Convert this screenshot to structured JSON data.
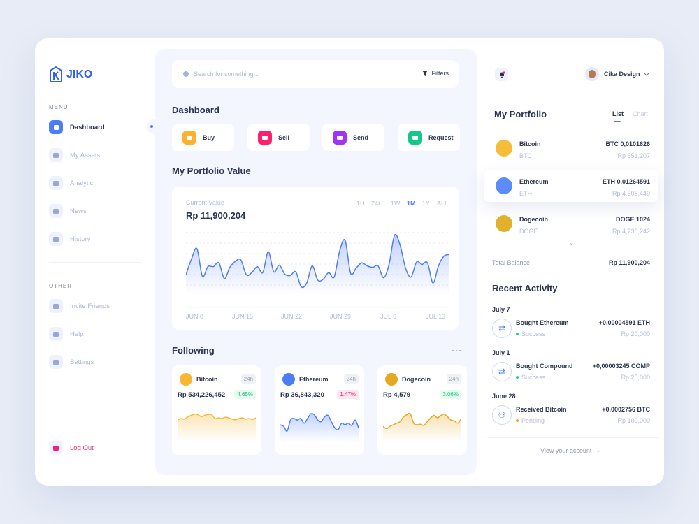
{
  "brand": {
    "name": "JIKO",
    "accent": "#2f63f0"
  },
  "sidebar": {
    "menu_label": "MENU",
    "menu": [
      {
        "label": "Dashboard",
        "icon": "grid-icon",
        "active": true
      },
      {
        "label": "My Assets",
        "icon": "wallet-icon"
      },
      {
        "label": "Analytic",
        "icon": "chart-icon"
      },
      {
        "label": "News",
        "icon": "document-icon"
      },
      {
        "label": "History",
        "icon": "clock-icon"
      }
    ],
    "other_label": "OTHER",
    "other": [
      {
        "label": "Invite Friends",
        "icon": "folder-icon"
      },
      {
        "label": "Help",
        "icon": "help-icon"
      },
      {
        "label": "Settings",
        "icon": "gear-icon"
      }
    ],
    "logout": "Log Out"
  },
  "search": {
    "placeholder": "Search for something...",
    "filters": "Filters"
  },
  "dashboard": {
    "title": "Dashboard",
    "actions": [
      {
        "label": "Buy",
        "color": "#ffb02e",
        "icon": "cart-icon"
      },
      {
        "label": "Sell",
        "color": "#ff1f6d",
        "icon": "tag-icon"
      },
      {
        "label": "Send",
        "color": "#a033f5",
        "icon": "send-icon"
      },
      {
        "label": "Request",
        "color": "#12c98a",
        "icon": "request-icon"
      }
    ]
  },
  "portfolio_value": {
    "title": "My Portfolio Value",
    "current_label": "Current Value",
    "current": "Rp 11,900,204",
    "timeframes": [
      "1H",
      "24H",
      "1W",
      "1M",
      "1Y",
      "ALL"
    ],
    "selected": "1M"
  },
  "chart_data": {
    "type": "area",
    "xticks": [
      "JUN 8",
      "JUN 15",
      "JUN 22",
      "JUN 29",
      "JUL 6",
      "JUL 13"
    ],
    "values": [
      38,
      59,
      73,
      36,
      49,
      49,
      54,
      33,
      48,
      56,
      58,
      38,
      41,
      49,
      41,
      69,
      42,
      51,
      39,
      37,
      42,
      22,
      27,
      50,
      31,
      32,
      41,
      35,
      70,
      84,
      40,
      47,
      54,
      50,
      48,
      50,
      34,
      52,
      91,
      78,
      47,
      35,
      55,
      52,
      54,
      27,
      50,
      63,
      65
    ],
    "ylim": [
      0,
      100
    ],
    "grid": true,
    "color": "#4d7cf6"
  },
  "following": {
    "title": "Following",
    "items": [
      {
        "name": "Bitcoin",
        "tag": "24h",
        "price": "Rp 534,226,452",
        "change": "4.65%",
        "up": true,
        "color": "#f7b733",
        "spark": [
          55,
          60,
          58,
          65,
          70,
          74,
          72,
          66,
          70,
          73,
          72,
          60,
          62,
          60,
          64,
          62,
          58,
          56,
          60,
          62,
          58,
          60,
          57,
          62
        ]
      },
      {
        "name": "Ethereum",
        "tag": "24h",
        "price": "Rp 36,843,320",
        "change": "1.47%",
        "up": false,
        "color": "#4d7cf6",
        "spark": [
          40,
          35,
          20,
          55,
          60,
          55,
          60,
          45,
          60,
          75,
          72,
          55,
          50,
          65,
          70,
          50,
          30,
          25,
          45,
          40,
          45,
          38,
          55,
          30
        ]
      },
      {
        "name": "Dogecoin",
        "tag": "24h",
        "price": "Rp 4,579",
        "change": "3.06%",
        "up": true,
        "color": "#e6a820",
        "spark": [
          35,
          28,
          35,
          40,
          45,
          50,
          65,
          72,
          75,
          45,
          40,
          42,
          38,
          50,
          62,
          70,
          62,
          70,
          74,
          65,
          55,
          52,
          45,
          60
        ]
      }
    ]
  },
  "header": {
    "user": "Cika Design"
  },
  "my_portfolio": {
    "title": "My Portfolio",
    "tabs": [
      "List",
      "Chart"
    ],
    "items": [
      {
        "name": "Bitcoin",
        "symbol": "BTC",
        "amount": "BTC 0,0101626",
        "value": "Rp 551,207",
        "color": "#f5bd3a"
      },
      {
        "name": "Ethereum",
        "symbol": "ETH",
        "amount": "ETH 0,01264591",
        "value": "Rp 4,508,449",
        "color": "#5b8cf7"
      },
      {
        "name": "Dogecoin",
        "symbol": "DOGE",
        "amount": "DOGE  1024",
        "value": "Rp 4,738,242",
        "color": "#e2b12c"
      }
    ],
    "total_label": "Total Balance",
    "total": "Rp 11,900,204"
  },
  "recent": {
    "title": "Recent Activity",
    "groups": [
      {
        "date": "July 7",
        "title": "Bought Ethereum",
        "status": "Success",
        "status_color": "#1fd17d",
        "amount": "+0,00004591 ETH",
        "value": "Rp 20,000",
        "icon": "swap-icon"
      },
      {
        "date": "July 1",
        "title": "Bought Compound",
        "status": "Success",
        "status_color": "#1fd17d",
        "amount": "+0,00003245 COMP",
        "value": "Rp 25,000",
        "icon": "swap-icon"
      },
      {
        "date": "June 28",
        "title": "Received Bitcoin",
        "status": "Pending",
        "status_color": "#ffa21f",
        "amount": "+0,0002756 BTC",
        "value": "Rp 100,000",
        "icon": "user-icon"
      }
    ],
    "view_link": "View your account"
  }
}
